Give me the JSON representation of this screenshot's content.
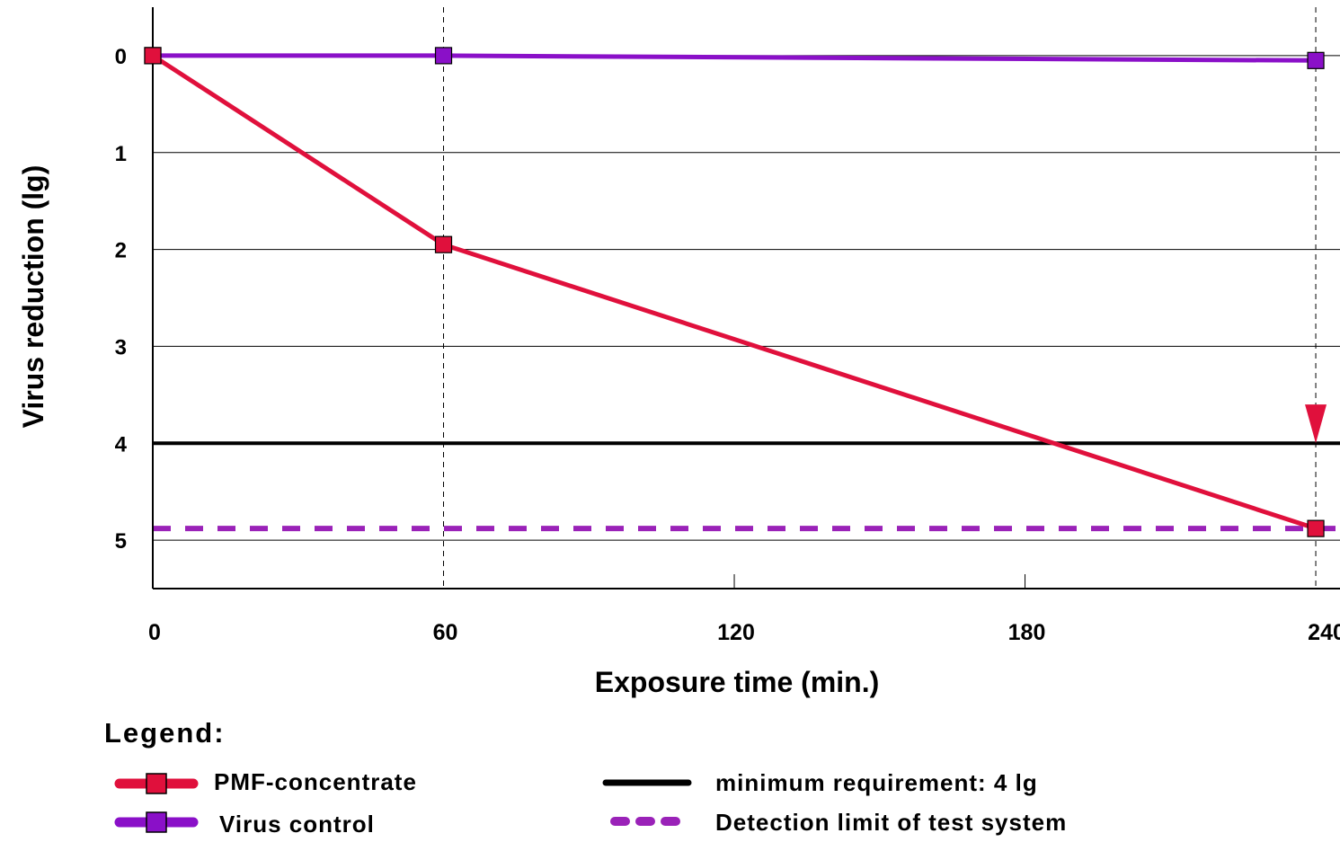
{
  "chart_data": {
    "type": "line",
    "title": "",
    "xlabel": "Exposure time (min.)",
    "ylabel": "Virus reduction (lg)",
    "x_ticks": [
      0,
      60,
      120,
      180,
      240
    ],
    "y_ticks": [
      0,
      1,
      2,
      3,
      4,
      5
    ],
    "xlim": [
      0,
      245
    ],
    "ylim": [
      -0.5,
      5.5
    ],
    "y_inverted": true,
    "grid": "horizontal",
    "series": [
      {
        "name": "PMF-concentrate",
        "x": [
          0,
          60,
          240
        ],
        "y": [
          0,
          1.95,
          4.88
        ],
        "color": "#e0103c",
        "marker": "square"
      },
      {
        "name": "Virus control",
        "x": [
          0,
          60,
          240
        ],
        "y": [
          0.0,
          0.0,
          0.05
        ],
        "color": "#8a10c8",
        "marker": "square"
      }
    ],
    "reference_lines": [
      {
        "name": "minimum requirement: 4 lg",
        "y": 4,
        "color": "#000000",
        "style": "solid"
      },
      {
        "name": "Detection limit of test system",
        "y": 4.88,
        "color": "#9a22b8",
        "style": "dashed"
      }
    ],
    "annotations": [
      {
        "type": "arrow",
        "x": 240,
        "y_from": 3.6,
        "y_to": 4.0,
        "color": "#e0103c"
      }
    ],
    "legend": {
      "title": "Legend:",
      "placement": "bottom"
    }
  }
}
